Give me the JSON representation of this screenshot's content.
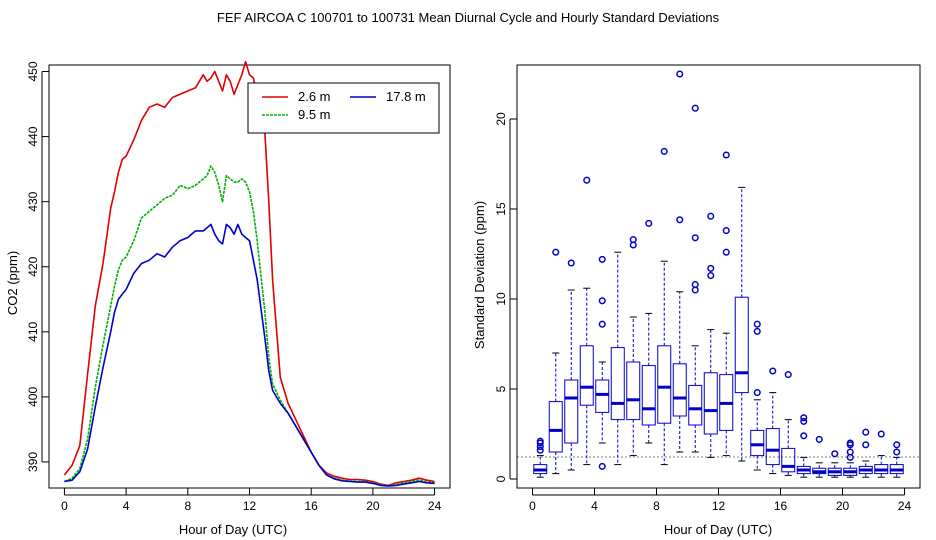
{
  "title": "FEF   AIRCOA C   100701 to 100731   Mean Diurnal Cycle and Hourly Standard Deviations",
  "chart_data": [
    {
      "type": "line",
      "xlabel": "Hour of Day (UTC)",
      "ylabel": "CO2 (ppm)",
      "xlim": [
        -1,
        25
      ],
      "ylim": [
        386,
        451
      ],
      "xticks": [
        "0",
        "4",
        "8",
        "12",
        "16",
        "20",
        "24"
      ],
      "yticks": [
        "390",
        "400",
        "410",
        "420",
        "430",
        "440",
        "450"
      ],
      "legend_position": "top-right",
      "x": [
        0,
        0.5,
        1,
        1.5,
        2,
        2.5,
        3,
        3.25,
        3.5,
        3.75,
        4,
        4.5,
        5,
        5.5,
        6,
        6.5,
        7,
        7.5,
        8,
        8.5,
        9,
        9.25,
        9.5,
        9.75,
        10,
        10.25,
        10.5,
        10.75,
        11,
        11.25,
        11.5,
        11.75,
        12,
        12.25,
        12.5,
        13,
        13.25,
        13.5,
        14,
        14.5,
        15,
        15.5,
        16,
        16.5,
        17,
        17.5,
        18,
        18.5,
        19,
        19.5,
        20,
        20.5,
        21,
        21.5,
        22,
        22.5,
        23,
        23.5,
        24
      ],
      "series": [
        {
          "name": "2.6 m",
          "color": "#e00000",
          "values": [
            388.0,
            389.5,
            392.5,
            403.5,
            414.0,
            420.5,
            429.0,
            431.5,
            434.5,
            436.5,
            437.0,
            439.5,
            442.5,
            444.5,
            445.0,
            444.5,
            446.0,
            446.5,
            447.0,
            447.5,
            449.5,
            448.5,
            449.0,
            450.0,
            448.5,
            447.0,
            449.5,
            448.5,
            446.5,
            448.0,
            449.5,
            451.5,
            449.5,
            449.0,
            446.0,
            440.5,
            430.0,
            418.0,
            403.0,
            399.0,
            396.5,
            394.0,
            391.5,
            389.5,
            388.3,
            387.8,
            387.5,
            387.3,
            387.3,
            387.2,
            387.0,
            386.6,
            386.4,
            386.8,
            387.0,
            387.2,
            387.5,
            387.2,
            387.0
          ]
        },
        {
          "name": "9.5 m",
          "color": "#00b000",
          "values": [
            387.0,
            387.5,
            389.0,
            393.5,
            401.5,
            408.0,
            414.0,
            417.0,
            419.5,
            421.0,
            421.5,
            424.0,
            427.5,
            428.5,
            429.5,
            430.5,
            431.0,
            432.5,
            432.0,
            432.5,
            433.5,
            434.0,
            435.5,
            434.5,
            432.5,
            430.0,
            434.0,
            433.5,
            433.0,
            433.0,
            433.5,
            433.0,
            431.5,
            428.5,
            424.0,
            413.0,
            406.0,
            402.0,
            399.5,
            397.5,
            395.5,
            393.5,
            391.5,
            389.5,
            388.0,
            387.5,
            387.2,
            387.1,
            387.0,
            387.0,
            386.8,
            386.5,
            386.3,
            386.5,
            386.8,
            387.0,
            387.2,
            386.9,
            386.8
          ]
        },
        {
          "name": "17.8 m",
          "color": "#0000cc",
          "values": [
            387.0,
            387.2,
            388.5,
            392.0,
            398.5,
            404.5,
            410.0,
            413.0,
            415.0,
            415.8,
            416.5,
            419.0,
            420.5,
            421.0,
            422.0,
            421.5,
            423.0,
            424.0,
            424.5,
            425.5,
            425.5,
            426.0,
            426.5,
            425.0,
            424.0,
            423.5,
            426.5,
            426.0,
            425.0,
            426.5,
            425.0,
            424.5,
            424.0,
            421.0,
            418.0,
            409.0,
            404.0,
            401.0,
            399.0,
            397.5,
            395.5,
            393.5,
            391.5,
            389.5,
            388.0,
            387.4,
            387.1,
            387.0,
            386.9,
            386.9,
            386.7,
            386.4,
            386.3,
            386.4,
            386.6,
            386.8,
            387.0,
            386.8,
            386.7
          ]
        }
      ]
    },
    {
      "type": "box",
      "xlabel": "Hour of Day (UTC)",
      "ylabel": "Standard Deviation (ppm)",
      "xlim": [
        -1,
        25
      ],
      "ylim": [
        -0.5,
        23.0
      ],
      "xticks": [
        "0",
        "4",
        "8",
        "12",
        "16",
        "20",
        "24"
      ],
      "yticks": [
        "0",
        "5",
        "10",
        "15",
        "20"
      ],
      "boxes": [
        {
          "x": 0.5,
          "whisker_low": 0.1,
          "q1": 0.3,
          "median": 0.5,
          "q3": 0.8,
          "whisker_high": 1.3,
          "outliers": [
            1.6,
            1.8,
            2.0,
            2.1
          ]
        },
        {
          "x": 1.5,
          "whisker_low": 0.3,
          "q1": 1.5,
          "median": 2.7,
          "q3": 4.3,
          "whisker_high": 7.0,
          "outliers": [
            12.6
          ]
        },
        {
          "x": 2.5,
          "whisker_low": 0.5,
          "q1": 2.0,
          "median": 4.5,
          "q3": 5.5,
          "whisker_high": 10.5,
          "outliers": [
            12.0
          ]
        },
        {
          "x": 3.5,
          "whisker_low": 0.8,
          "q1": 4.1,
          "median": 5.1,
          "q3": 7.4,
          "whisker_high": 10.6,
          "outliers": [
            16.6
          ]
        },
        {
          "x": 4.5,
          "whisker_low": 2.0,
          "q1": 3.7,
          "median": 4.7,
          "q3": 5.5,
          "whisker_high": 6.5,
          "outliers": [
            0.7,
            8.6,
            9.9,
            12.2
          ]
        },
        {
          "x": 5.5,
          "whisker_low": 0.8,
          "q1": 3.3,
          "median": 4.2,
          "q3": 7.3,
          "whisker_high": 12.6,
          "outliers": []
        },
        {
          "x": 6.5,
          "whisker_low": 1.3,
          "q1": 3.3,
          "median": 4.4,
          "q3": 6.5,
          "whisker_high": 9.0,
          "outliers": [
            13.0,
            13.3
          ]
        },
        {
          "x": 7.5,
          "whisker_low": 2.0,
          "q1": 3.0,
          "median": 3.9,
          "q3": 6.3,
          "whisker_high": 9.2,
          "outliers": [
            14.2
          ]
        },
        {
          "x": 8.5,
          "whisker_low": 0.8,
          "q1": 3.1,
          "median": 5.1,
          "q3": 7.4,
          "whisker_high": 12.1,
          "outliers": [
            18.2
          ]
        },
        {
          "x": 9.5,
          "whisker_low": 1.5,
          "q1": 3.5,
          "median": 4.5,
          "q3": 6.4,
          "whisker_high": 10.4,
          "outliers": [
            14.4,
            22.5
          ]
        },
        {
          "x": 10.5,
          "whisker_low": 1.5,
          "q1": 3.0,
          "median": 3.9,
          "q3": 5.2,
          "whisker_high": 7.4,
          "outliers": [
            10.5,
            10.8,
            13.4,
            20.6
          ]
        },
        {
          "x": 11.5,
          "whisker_low": 1.2,
          "q1": 2.5,
          "median": 3.8,
          "q3": 5.9,
          "whisker_high": 8.3,
          "outliers": [
            11.3,
            11.7,
            14.6
          ]
        },
        {
          "x": 12.5,
          "whisker_low": 1.3,
          "q1": 2.7,
          "median": 4.2,
          "q3": 5.8,
          "whisker_high": 8.1,
          "outliers": [
            12.6,
            13.8,
            18.0
          ]
        },
        {
          "x": 13.5,
          "whisker_low": 1.0,
          "q1": 4.8,
          "median": 5.9,
          "q3": 10.1,
          "whisker_high": 16.2,
          "outliers": []
        },
        {
          "x": 14.5,
          "whisker_low": 0.5,
          "q1": 1.3,
          "median": 1.9,
          "q3": 2.7,
          "whisker_high": 4.4,
          "outliers": [
            4.8,
            8.2,
            8.6
          ]
        },
        {
          "x": 15.5,
          "whisker_low": 0.3,
          "q1": 0.8,
          "median": 1.6,
          "q3": 2.8,
          "whisker_high": 4.8,
          "outliers": [
            6.0
          ]
        },
        {
          "x": 16.5,
          "whisker_low": 0.2,
          "q1": 0.4,
          "median": 0.7,
          "q3": 1.7,
          "whisker_high": 3.3,
          "outliers": [
            5.8
          ]
        },
        {
          "x": 17.5,
          "whisker_low": 0.1,
          "q1": 0.3,
          "median": 0.5,
          "q3": 0.7,
          "whisker_high": 1.2,
          "outliers": [
            2.4,
            3.2,
            3.4
          ]
        },
        {
          "x": 18.5,
          "whisker_low": 0.1,
          "q1": 0.3,
          "median": 0.4,
          "q3": 0.6,
          "whisker_high": 0.9,
          "outliers": [
            2.2
          ]
        },
        {
          "x": 19.5,
          "whisker_low": 0.1,
          "q1": 0.2,
          "median": 0.4,
          "q3": 0.6,
          "whisker_high": 0.9,
          "outliers": [
            1.4
          ]
        },
        {
          "x": 20.5,
          "whisker_low": 0.1,
          "q1": 0.2,
          "median": 0.4,
          "q3": 0.6,
          "whisker_high": 0.9,
          "outliers": [
            1.2,
            1.5,
            1.9,
            2.0
          ]
        },
        {
          "x": 21.5,
          "whisker_low": 0.1,
          "q1": 0.3,
          "median": 0.5,
          "q3": 0.7,
          "whisker_high": 1.0,
          "outliers": [
            1.9,
            2.6
          ]
        },
        {
          "x": 22.5,
          "whisker_low": 0.1,
          "q1": 0.3,
          "median": 0.5,
          "q3": 0.8,
          "whisker_high": 1.3,
          "outliers": [
            2.5
          ]
        },
        {
          "x": 23.5,
          "whisker_low": 0.1,
          "q1": 0.3,
          "median": 0.5,
          "q3": 0.8,
          "whisker_high": 1.2,
          "outliers": [
            1.5,
            1.9
          ]
        }
      ]
    }
  ]
}
